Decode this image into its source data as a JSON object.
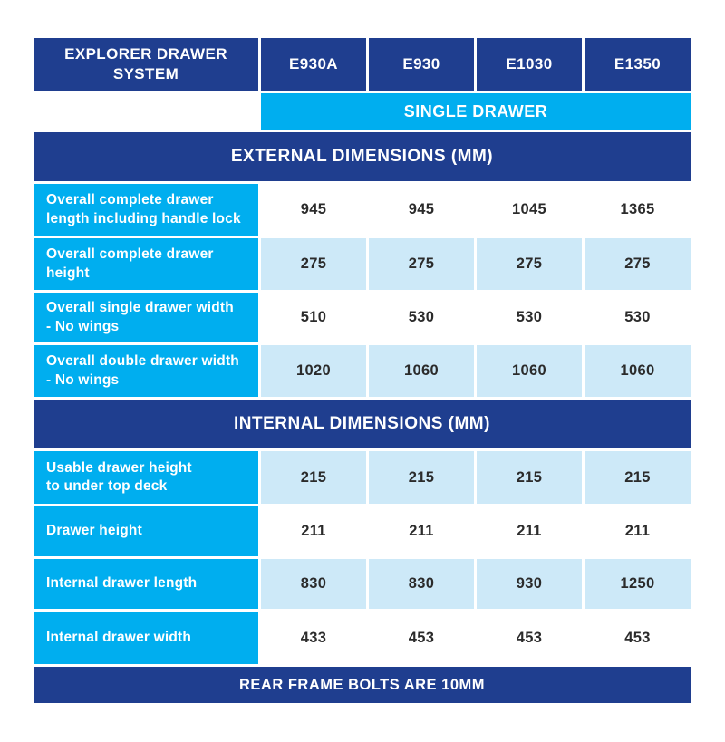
{
  "colors": {
    "dark_blue": "#1f3e8f",
    "cyan": "#00aeef",
    "light_blue": "#cde9f8",
    "value_text": "#2b2b2b",
    "header_text": "#ffffff"
  },
  "header": {
    "title": "EXPLORER DRAWER\nSYSTEM",
    "columns": [
      "E930A",
      "E930",
      "E1030",
      "E1350"
    ],
    "subheader": "SINGLE DRAWER"
  },
  "sections": [
    {
      "title": "EXTERNAL DIMENSIONS (MM)",
      "rows": [
        {
          "label": "Overall complete drawer\nlength including handle lock",
          "values": [
            "945",
            "945",
            "1045",
            "1365"
          ]
        },
        {
          "label": "Overall complete drawer\nheight",
          "values": [
            "275",
            "275",
            "275",
            "275"
          ]
        },
        {
          "label": "Overall single drawer width\n- No wings",
          "values": [
            "510",
            "530",
            "530",
            "530"
          ]
        },
        {
          "label": "Overall double drawer width\n- No wings",
          "values": [
            "1020",
            "1060",
            "1060",
            "1060"
          ]
        }
      ]
    },
    {
      "title": "INTERNAL DIMENSIONS (MM)",
      "rows": [
        {
          "label": "Usable drawer height\nto under top deck",
          "values": [
            "215",
            "215",
            "215",
            "215"
          ]
        },
        {
          "label": "Drawer height",
          "values": [
            "211",
            "211",
            "211",
            "211"
          ]
        },
        {
          "label": "Internal drawer length",
          "values": [
            "830",
            "830",
            "930",
            "1250"
          ]
        },
        {
          "label": "Internal drawer width",
          "values": [
            "433",
            "453",
            "453",
            "453"
          ]
        }
      ]
    }
  ],
  "footer": "REAR FRAME BOLTS ARE 10MM"
}
